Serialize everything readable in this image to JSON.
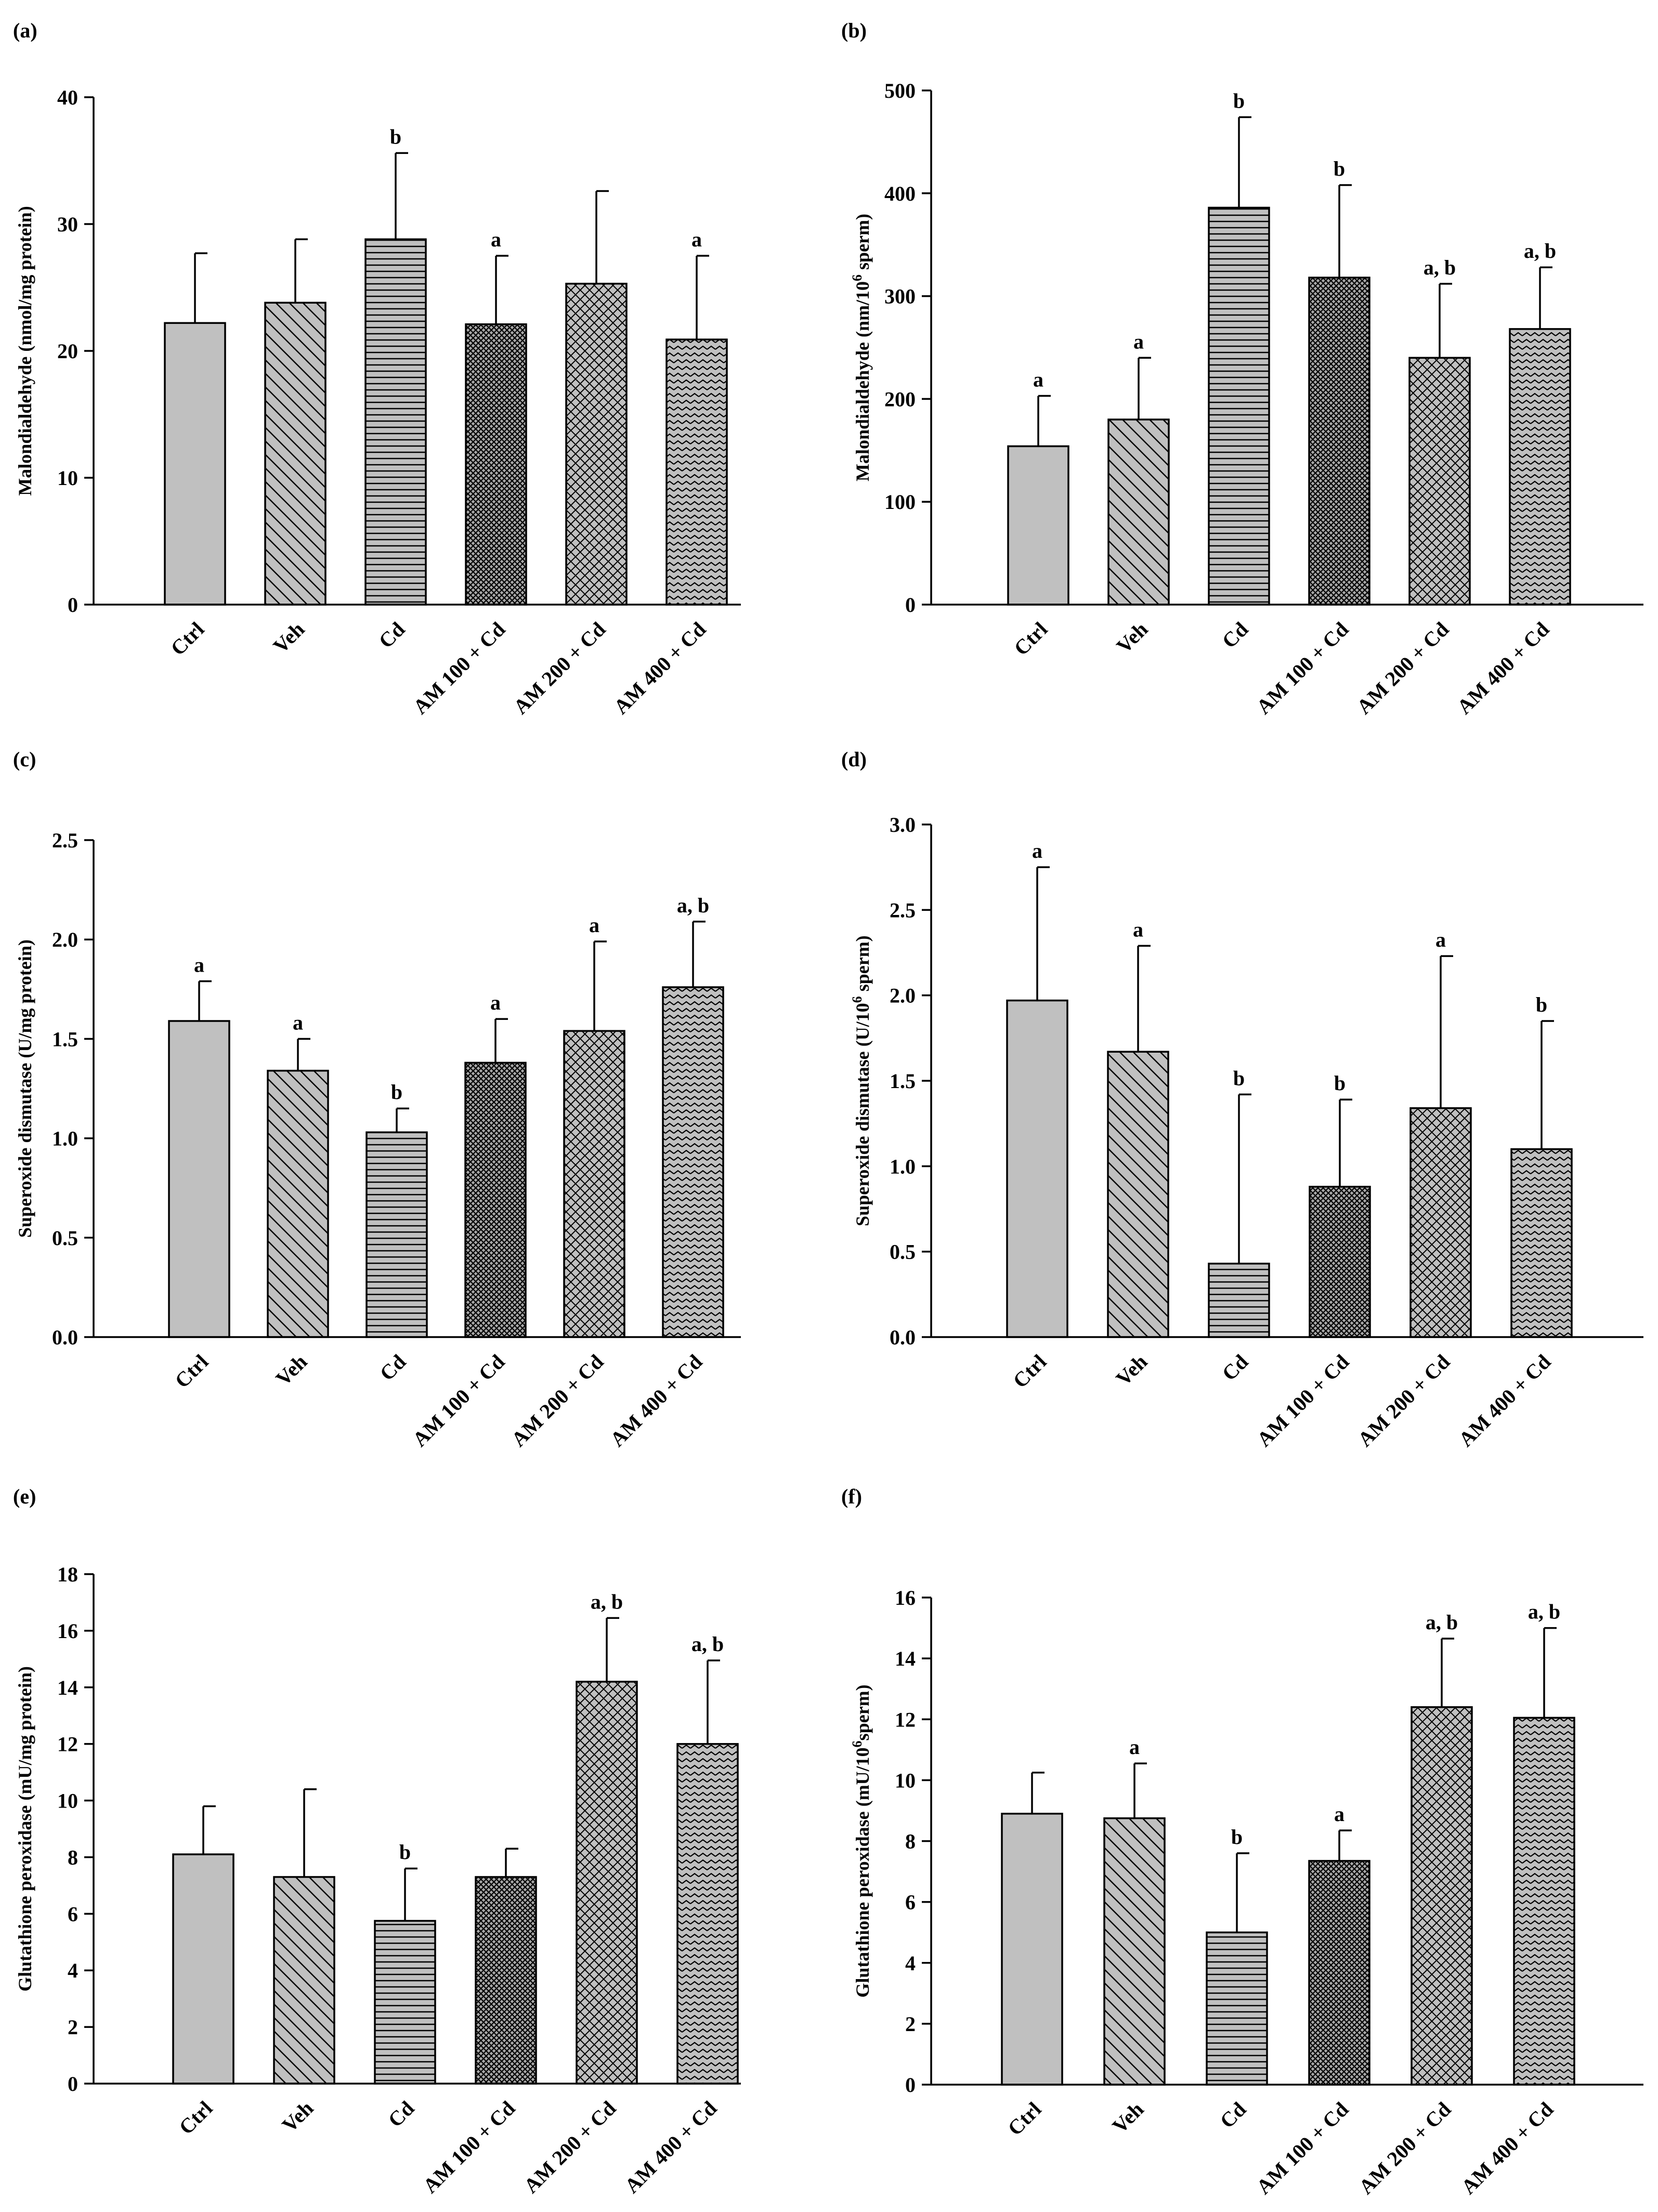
{
  "figure": {
    "categories": [
      "Ctrl",
      "Veh",
      "Cd",
      "AM 100 + Cd",
      "AM 200 + Cd",
      "AM 400 + Cd"
    ]
  },
  "patterns": {
    "bar_fill_color": "#c0c0c0",
    "line_color": "#000000",
    "bar_patterns": [
      "solid",
      "diag-back",
      "horizontal",
      "crosshatch-dense",
      "crosshatch",
      "zigzag"
    ]
  },
  "chart_data": [
    {
      "panel": "(a)",
      "type": "bar",
      "title": "",
      "xlabel": "",
      "ylabel": "Malondialdehyde (nmol/mg protein)",
      "ylim": [
        0,
        40
      ],
      "yticks": [
        0,
        10,
        20,
        30,
        40
      ],
      "categories": [
        "Ctrl",
        "Veh",
        "Cd",
        "AM 100 + Cd",
        "AM 200 + Cd",
        "AM 400 + Cd"
      ],
      "values": [
        22.2,
        23.8,
        28.8,
        22.1,
        25.3,
        20.9
      ],
      "errors": [
        5.5,
        5.0,
        6.8,
        5.4,
        7.3,
        6.6
      ],
      "significance": [
        "",
        "",
        "b",
        "a",
        "",
        "a"
      ]
    },
    {
      "panel": "(b)",
      "type": "bar",
      "title": "",
      "xlabel": "",
      "ylabel_main": "Malondialdehyde (nm/10",
      "ylabel_sup": "6",
      "ylabel_tail": " sperm)",
      "ylim": [
        0,
        500
      ],
      "yticks": [
        0,
        100,
        200,
        300,
        400,
        500
      ],
      "categories": [
        "Ctrl",
        "Veh",
        "Cd",
        "AM 100 + Cd",
        "AM 200 + Cd",
        "AM 400 + Cd"
      ],
      "values": [
        154,
        180,
        386,
        318,
        240,
        268
      ],
      "errors": [
        49,
        60,
        88,
        90,
        72,
        60
      ],
      "significance": [
        "a",
        "a",
        "b",
        "b",
        "a, b",
        "a, b"
      ]
    },
    {
      "panel": "(c)",
      "type": "bar",
      "title": "",
      "xlabel": "",
      "ylabel": "Superoxide dismutase (U/mg protein)",
      "ylim": [
        0,
        2.5
      ],
      "yticks": [
        0,
        0.5,
        1.0,
        1.5,
        2.0,
        2.5
      ],
      "ytick_labels": [
        "0.0",
        "0.5",
        "1.0",
        "1.5",
        "2.0",
        "2.5"
      ],
      "categories": [
        "Ctrl",
        "Veh",
        "Cd",
        "AM 100 + Cd",
        "AM 200 + Cd",
        "AM 400 + Cd"
      ],
      "values": [
        1.59,
        1.34,
        1.03,
        1.38,
        1.54,
        1.76
      ],
      "errors": [
        0.2,
        0.16,
        0.12,
        0.22,
        0.45,
        0.33
      ],
      "significance": [
        "a",
        "a",
        "b",
        "a",
        "a",
        "a, b"
      ]
    },
    {
      "panel": "(d)",
      "type": "bar",
      "title": "",
      "xlabel": "",
      "ylabel_main": "Superoxide dismutase (U/10",
      "ylabel_sup": "6",
      "ylabel_tail": " sperm)",
      "ylim": [
        0,
        3.0
      ],
      "yticks": [
        0,
        0.5,
        1.0,
        1.5,
        2.0,
        2.5,
        3.0
      ],
      "ytick_labels": [
        "0.0",
        "0.5",
        "1.0",
        "1.5",
        "2.0",
        "2.5",
        "3.0"
      ],
      "categories": [
        "Ctrl",
        "Veh",
        "Cd",
        "AM 100 + Cd",
        "AM 200 + Cd",
        "AM 400 + Cd"
      ],
      "values": [
        1.97,
        1.67,
        0.43,
        0.88,
        1.34,
        1.1
      ],
      "errors": [
        0.78,
        0.62,
        0.99,
        0.51,
        0.89,
        0.75
      ],
      "significance": [
        "a",
        "a",
        "b",
        "b",
        "a",
        "b"
      ]
    },
    {
      "panel": "(e)",
      "type": "bar",
      "title": "",
      "xlabel": "",
      "ylabel": "Glutathione peroxidase (mU/mg protein)",
      "ylim": [
        0,
        18
      ],
      "yticks": [
        0,
        2,
        4,
        6,
        8,
        10,
        12,
        14,
        16,
        18
      ],
      "categories": [
        "Ctrl",
        "Veh",
        "Cd",
        "AM 100 + Cd",
        "AM 200 + Cd",
        "AM 400 + Cd"
      ],
      "values": [
        8.1,
        7.3,
        5.75,
        7.3,
        14.2,
        12.0
      ],
      "errors": [
        1.7,
        3.1,
        1.85,
        1.0,
        2.25,
        2.95
      ],
      "significance": [
        "",
        "",
        "b",
        "",
        "a, b",
        "a, b"
      ]
    },
    {
      "panel": "(f)",
      "type": "bar",
      "title": "",
      "xlabel": "",
      "ylabel_main": "Glutathione peroxidase (mU/10",
      "ylabel_sup": "6",
      "ylabel_tail": "sperm)",
      "ylim": [
        0,
        16
      ],
      "yticks": [
        0,
        2,
        4,
        6,
        8,
        10,
        12,
        14,
        16
      ],
      "categories": [
        "Ctrl",
        "Veh",
        "Cd",
        "AM 100 + Cd",
        "AM 200 + Cd",
        "AM 400 + Cd"
      ],
      "values": [
        8.9,
        8.75,
        5.0,
        7.35,
        12.4,
        12.05
      ],
      "errors": [
        1.35,
        1.8,
        2.6,
        1.0,
        2.25,
        2.95
      ],
      "significance": [
        "",
        "a",
        "b",
        "a",
        "a, b",
        "a, b"
      ]
    }
  ]
}
